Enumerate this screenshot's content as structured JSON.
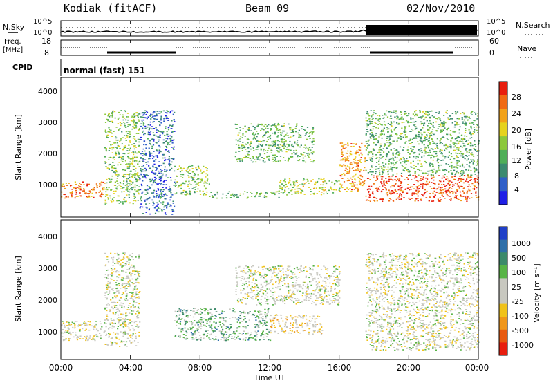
{
  "header": {
    "station": "Kodiak (fitACF)",
    "beam": "Beam 09",
    "date": "02/Nov/2010"
  },
  "noise_panel": {
    "left_label": "N.Sky",
    "right_label": "N.Search",
    "left_ticks": [
      "10^5",
      "10^0"
    ],
    "right_ticks": [
      "10^5",
      "10^0"
    ]
  },
  "freq_panel": {
    "left_label_1": "Freq.",
    "left_label_2": "[MHz]",
    "right_label": "Nave",
    "left_ticks": [
      "18",
      "8"
    ],
    "right_ticks": [
      "60",
      "0"
    ]
  },
  "cpid_panel": {
    "label": "CPID",
    "text": "normal (fast) 151"
  },
  "power_panel": {
    "ylabel": "Slant Range [km]",
    "yticks": [
      "4000",
      "3000",
      "2000",
      "1000"
    ],
    "colorbar_label": "Power [dB]",
    "colorbar_ticks": [
      "28",
      "24",
      "20",
      "16",
      "12",
      "8",
      "4"
    ],
    "colors": [
      "#1f1fe6",
      "#2f5fc8",
      "#3b8a70",
      "#4fae58",
      "#8cc83c",
      "#e6d21e",
      "#f2a21a",
      "#f06a14",
      "#e81e0e"
    ]
  },
  "velocity_panel": {
    "ylabel": "Slant Range [km]",
    "yticks": [
      "4000",
      "3000",
      "2000",
      "1000"
    ],
    "colorbar_label": "Velocity [m s⁻¹]",
    "colorbar_ticks": [
      "1000",
      "500",
      "100",
      "25",
      "-25",
      "-100",
      "-500",
      "-1000"
    ],
    "colors": [
      "#2040c8",
      "#2f6fa8",
      "#3c8a6a",
      "#58b446",
      "#c8c8c0",
      "#c8c8c0",
      "#f0c21a",
      "#f0961a",
      "#e85a10",
      "#e81e0e"
    ]
  },
  "xaxis": {
    "label": "Time UT",
    "ticks": [
      "00:00",
      "04:00",
      "08:00",
      "12:00",
      "16:00",
      "20:00",
      "00:00"
    ]
  },
  "chart_data": {
    "type": "heatmap",
    "title": "Kodiak (fitACF)  Beam 09  02/Nov/2010",
    "xlabel": "Time UT",
    "ylabel": "Slant Range [km]",
    "xlim": [
      "00:00",
      "24:00"
    ],
    "ylim": [
      200,
      4500
    ],
    "panels": [
      {
        "name": "Power",
        "units": "dB",
        "colorbar_range": [
          0,
          30
        ],
        "regions": [
          {
            "t_start": 0.0,
            "t_end": 2.5,
            "range_start": 800,
            "range_end": 1300,
            "value": 24
          },
          {
            "t_start": 2.5,
            "t_end": 4.5,
            "range_start": 600,
            "range_end": 3500,
            "value": 14
          },
          {
            "t_start": 4.5,
            "t_end": 6.5,
            "range_start": 300,
            "range_end": 3500,
            "value": 6
          },
          {
            "t_start": 6.5,
            "t_end": 8.5,
            "range_start": 900,
            "range_end": 1800,
            "value": 14
          },
          {
            "t_start": 8.5,
            "t_end": 12.5,
            "range_start": 800,
            "range_end": 1000,
            "value": 12
          },
          {
            "t_start": 10.0,
            "t_end": 14.5,
            "range_start": 1900,
            "range_end": 3100,
            "value": 12
          },
          {
            "t_start": 12.5,
            "t_end": 16.0,
            "range_start": 900,
            "range_end": 1400,
            "value": 16
          },
          {
            "t_start": 16.0,
            "t_end": 17.5,
            "range_start": 1000,
            "range_end": 2500,
            "value": 22
          },
          {
            "t_start": 17.5,
            "t_end": 24.0,
            "range_start": 700,
            "range_end": 1500,
            "value": 27
          },
          {
            "t_start": 17.5,
            "t_end": 24.0,
            "range_start": 1500,
            "range_end": 3500,
            "value": 12
          }
        ]
      },
      {
        "name": "Velocity",
        "units": "m s^-1",
        "colorbar_range": [
          -1000,
          1000
        ],
        "regions": [
          {
            "t_start": 0.0,
            "t_end": 2.5,
            "range_start": 800,
            "range_end": 1400,
            "value": 0
          },
          {
            "t_start": 2.5,
            "t_end": 4.5,
            "range_start": 600,
            "range_end": 3500,
            "value": 0
          },
          {
            "t_start": 6.5,
            "t_end": 12.0,
            "range_start": 800,
            "range_end": 1800,
            "value": 300
          },
          {
            "t_start": 12.0,
            "t_end": 15.0,
            "range_start": 1000,
            "range_end": 1600,
            "value": -200
          },
          {
            "t_start": 10.0,
            "t_end": 16.0,
            "range_start": 1900,
            "range_end": 3100,
            "value": 0
          },
          {
            "t_start": 17.5,
            "t_end": 24.0,
            "range_start": 500,
            "range_end": 3500,
            "value": 0
          }
        ]
      }
    ]
  }
}
